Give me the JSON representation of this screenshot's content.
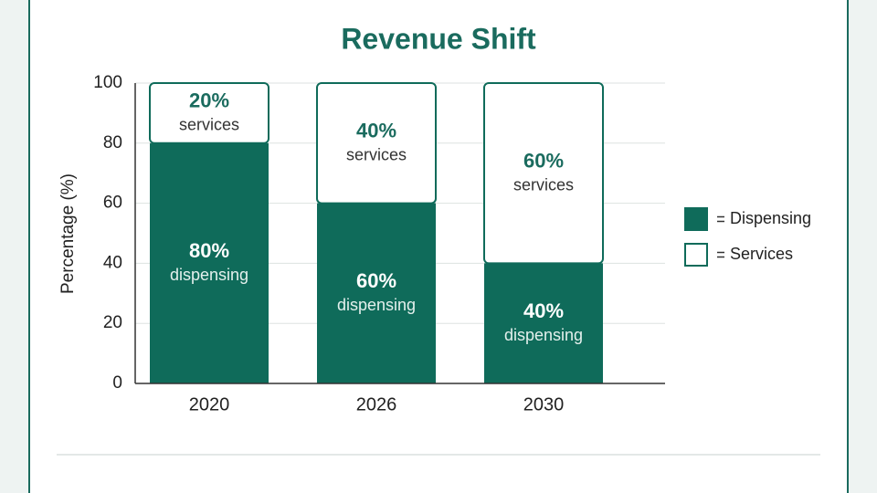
{
  "chart_data": {
    "type": "stacked_bar",
    "title": "Revenue Shift",
    "y_label": "Percentage (%)",
    "categories": [
      "2020",
      "2026",
      "2030"
    ],
    "series": [
      {
        "name": "Dispensing",
        "label": "dispensing",
        "color": "#0f6b5a",
        "values": [
          80,
          60,
          40
        ],
        "value_labels": [
          "80%",
          "60%",
          "40%"
        ]
      },
      {
        "name": "Services",
        "label": "services",
        "color": "#ffffff",
        "values": [
          20,
          40,
          60
        ],
        "value_labels": [
          "20%",
          "40%",
          "60%"
        ]
      }
    ],
    "ylim": [
      0,
      100
    ],
    "yticks": [
      0,
      20,
      40,
      60,
      80,
      100
    ],
    "grid": true,
    "legend": "right"
  }
}
